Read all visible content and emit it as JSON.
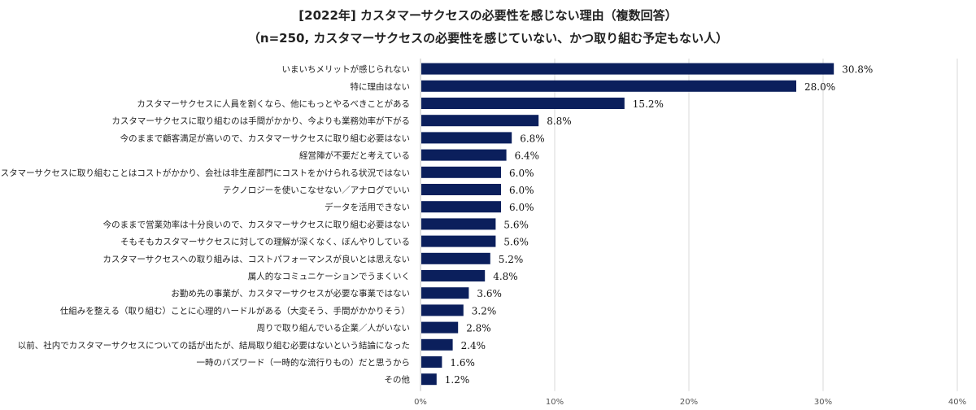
{
  "chart_data": {
    "type": "bar",
    "orientation": "horizontal",
    "title": "[2022年] カスタマーサクセスの必要性を感じない理由（複数回答）",
    "subtitle": "（n=250, カスタマーサクセスの必要性を感じていない、かつ取り組む予定もない人）",
    "categories": [
      "いまいちメリットが感じられない",
      "特に理由はない",
      "カスタマーサクセスに人員を割くなら、他にもっとやるべきことがある",
      "カスタマーサクセスに取り組むのは手間がかかり、今よりも業務効率が下がる",
      "今のままで顧客満足が高いので、カスタマーサクセスに取り組む必要はない",
      "経営陣が不要だと考えている",
      "カスタマーサクセスに取り組むことはコストがかかり、会社は非生産部門にコストをかけられる状況ではない",
      "テクノロジーを使いこなせない／アナログでいい",
      "データを活用できない",
      "今のままで営業効率は十分良いので、カスタマーサクセスに取り組む必要はない",
      "そもそもカスタマーサクセスに対しての理解が深くなく、ぼんやりしている",
      "カスタマーサクセスへの取り組みは、コストパフォーマンスが良いとは思えない",
      "属人的なコミュニケーションでうまくいく",
      "お勤め先の事業が、カスタマーサクセスが必要な事業ではない",
      "仕組みを整える（取り組む）ことに心理的ハードルがある（大変そう、手間がかかりそう）",
      "周りで取り組んでいる企業／人がいない",
      "以前、社内でカスタマーサクセスについての話が出たが、結局取り組む必要はないという結論になった",
      "一時のバズワード（一時的な流行りもの）だと思うから",
      "その他"
    ],
    "values": [
      30.8,
      28.0,
      15.2,
      8.8,
      6.8,
      6.4,
      6.0,
      6.0,
      6.0,
      5.6,
      5.6,
      5.2,
      4.8,
      3.6,
      3.2,
      2.8,
      2.4,
      1.6,
      1.2
    ],
    "value_labels": [
      "30.8%",
      "28.0%",
      "15.2%",
      "8.8%",
      "6.8%",
      "6.4%",
      "6.0%",
      "6.0%",
      "6.0%",
      "5.6%",
      "5.6%",
      "5.2%",
      "4.8%",
      "3.6%",
      "3.2%",
      "2.8%",
      "2.4%",
      "1.6%",
      "1.2%"
    ],
    "xlim": [
      0,
      40
    ],
    "x_ticks": [
      0,
      10,
      20,
      30,
      40
    ],
    "x_tick_labels": [
      "0%",
      "10%",
      "20%",
      "30%",
      "40%"
    ],
    "grid": true,
    "bar_color": "#0b1f5c",
    "grid_color": "#d9d9d9"
  }
}
